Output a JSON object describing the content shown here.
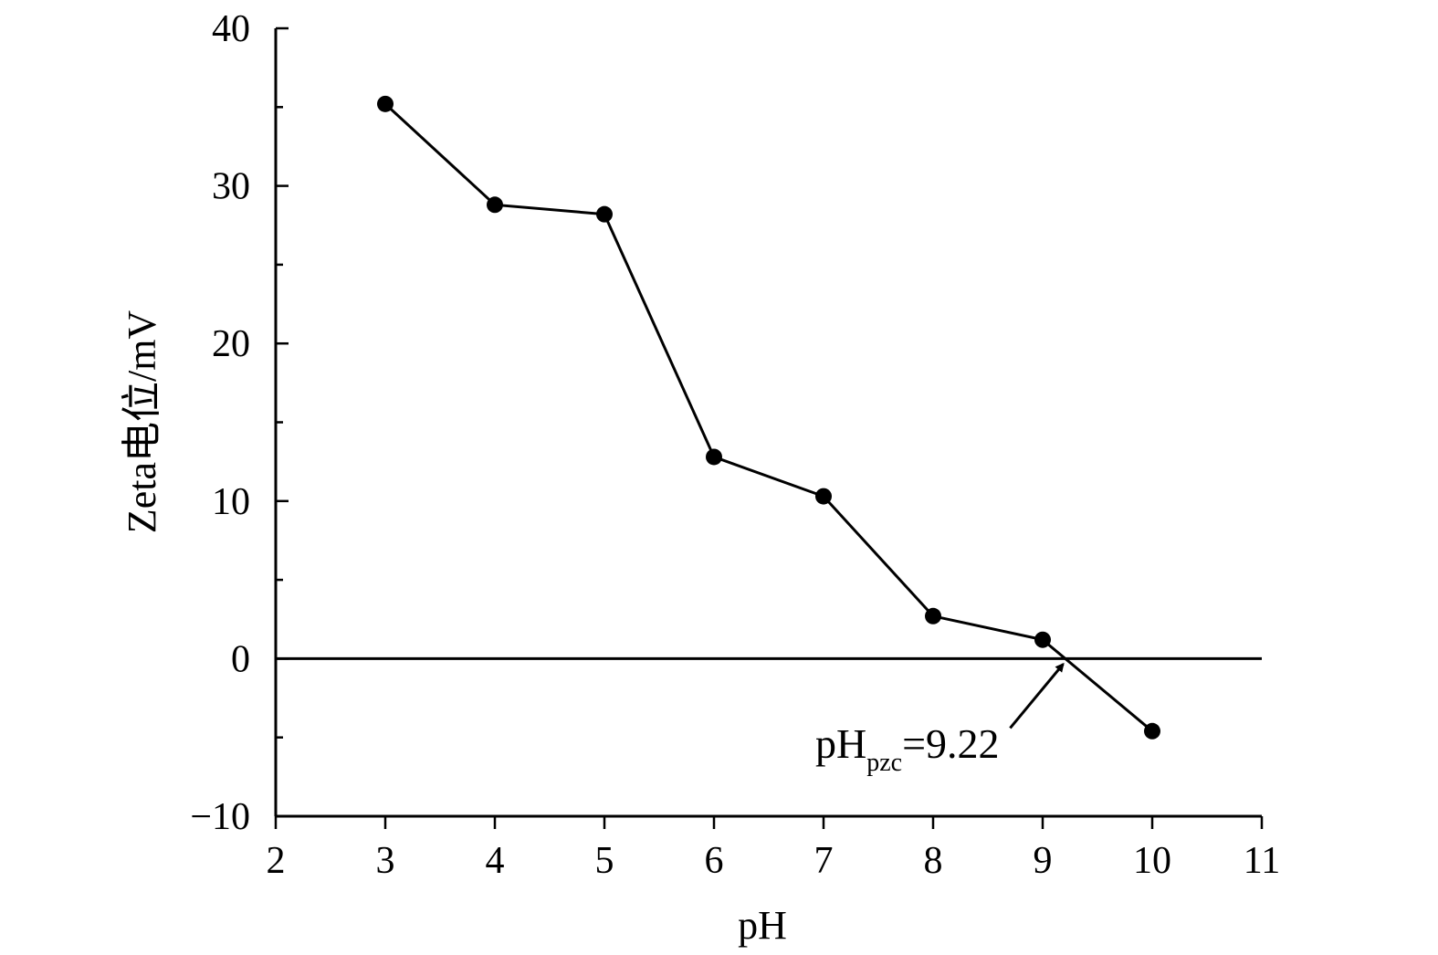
{
  "chart_data": {
    "type": "line",
    "xlabel": "pH",
    "ylabel": "Zeta电位/mV",
    "xlim": [
      2,
      11
    ],
    "ylim": [
      -10,
      40
    ],
    "xticks": [
      2,
      3,
      4,
      5,
      6,
      7,
      8,
      9,
      10,
      11
    ],
    "yticks": [
      -10,
      0,
      10,
      20,
      30,
      40
    ],
    "ytick_labels": [
      "−10",
      "0",
      "10",
      "20",
      "30",
      "40"
    ],
    "grid": false,
    "series": [
      {
        "x": [
          3,
          4,
          5,
          6,
          7,
          8,
          9,
          10
        ],
        "y": [
          35.2,
          28.8,
          28.2,
          12.8,
          10.3,
          2.7,
          1.2,
          -4.6
        ],
        "marker": "circle",
        "color": "#000000"
      }
    ],
    "reference_line": {
      "y": 0
    },
    "annotation": {
      "prefix": "pH",
      "subscript": "pzc",
      "suffix": "=9.22",
      "points_to_x": 9.22,
      "points_to_y": 0
    }
  }
}
